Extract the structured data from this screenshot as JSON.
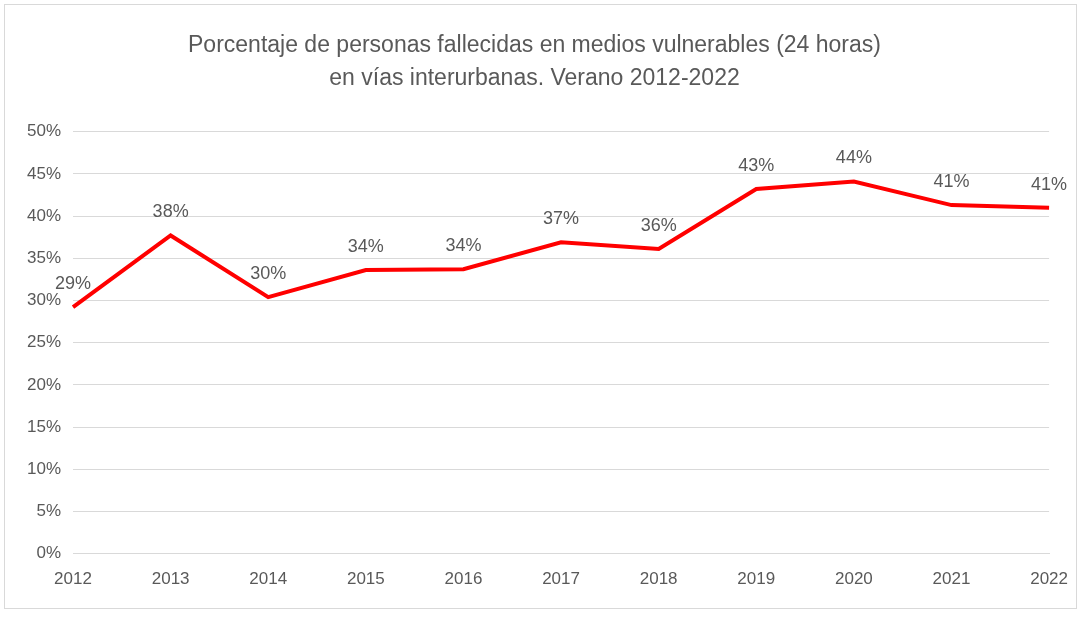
{
  "chart_data": {
    "type": "line",
    "title": [
      "Porcentaje de personas fallecidas en medios vulnerables (24 horas)",
      "en vías interurbanas. Verano 2012-2022"
    ],
    "categories": [
      "2012",
      "2013",
      "2014",
      "2015",
      "2016",
      "2017",
      "2018",
      "2019",
      "2020",
      "2021",
      "2022"
    ],
    "values": [
      29.2,
      37.7,
      30.4,
      33.6,
      33.7,
      36.9,
      36.1,
      43.2,
      44.1,
      41.3,
      41.0
    ],
    "value_labels": [
      "29%",
      "38%",
      "30%",
      "34%",
      "34%",
      "37%",
      "36%",
      "43%",
      "44%",
      "41%",
      "41%"
    ],
    "data_labels": true,
    "color": "#ff0000",
    "marker": "none",
    "grid": true,
    "ylim": [
      0,
      50
    ],
    "yticks": [
      {
        "value": 0,
        "label": "0%"
      },
      {
        "value": 5,
        "label": "5%"
      },
      {
        "value": 10,
        "label": "10%"
      },
      {
        "value": 15,
        "label": "15%"
      },
      {
        "value": 20,
        "label": "20%"
      },
      {
        "value": 25,
        "label": "25%"
      },
      {
        "value": 30,
        "label": "30%"
      },
      {
        "value": 35,
        "label": "35%"
      },
      {
        "value": 40,
        "label": "40%"
      },
      {
        "value": 45,
        "label": "45%"
      },
      {
        "value": 50,
        "label": "50%"
      }
    ]
  }
}
